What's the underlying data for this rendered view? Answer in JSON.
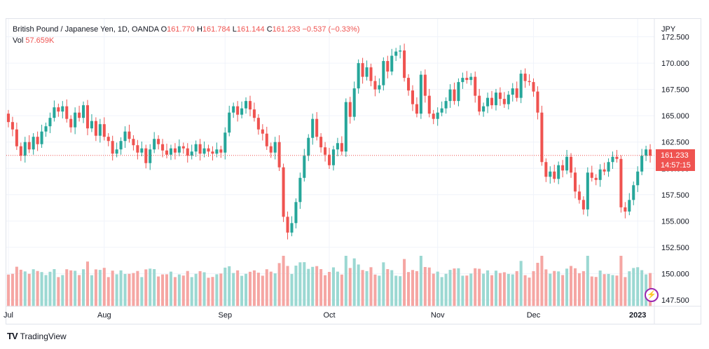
{
  "legend": {
    "symbol": "British Pound / Japanese Yen, 1D, OANDA",
    "o_label": "O",
    "o_value": "161.770",
    "h_label": "H",
    "h_value": "161.784",
    "l_label": "L",
    "l_value": "161.144",
    "c_label": "C",
    "c_value": "161.233",
    "change": "−0.537 (−0.33%)",
    "vol_label": "Vol",
    "vol_value": "57.659K"
  },
  "price_tag": {
    "price": "161.233",
    "countdown": "14:57:15"
  },
  "watermark": {
    "brand": "TradingView"
  },
  "colors": {
    "up": "#26a69a",
    "down": "#ef5350",
    "up_vol": "#9bd8d2",
    "down_vol": "#f5a6a3",
    "grid": "#f0f3fa",
    "text": "#131722"
  },
  "chart_data": {
    "type": "candlestick",
    "y_axis_currency": "JPY",
    "y_ticks": [
      "172.500",
      "170.000",
      "167.500",
      "165.000",
      "162.500",
      "160.000",
      "157.500",
      "155.000",
      "152.500",
      "150.000",
      "147.500"
    ],
    "y_tick_values": [
      172.5,
      170.0,
      167.5,
      165.0,
      162.5,
      160.0,
      157.5,
      155.0,
      152.5,
      150.0,
      147.5
    ],
    "ylim": [
      146.9,
      174.2
    ],
    "x_ticks": [
      "Jul",
      "Aug",
      "Sep",
      "Oct",
      "Nov",
      "Dec",
      "2023"
    ],
    "x_tick_index": [
      0,
      23,
      52,
      77,
      103,
      126,
      151
    ],
    "last_price": 161.233,
    "candles_close": [
      164.4,
      163.7,
      162.1,
      161.2,
      162.5,
      161.8,
      163.0,
      162.3,
      163.5,
      164.0,
      164.8,
      165.8,
      165.4,
      165.9,
      164.7,
      163.9,
      165.3,
      164.8,
      166.0,
      163.8,
      164.5,
      163.1,
      164.2,
      163.0,
      162.6,
      161.4,
      161.8,
      162.6,
      163.5,
      162.8,
      162.2,
      161.5,
      161.9,
      160.5,
      161.8,
      162.8,
      162.3,
      161.7,
      161.3,
      161.9,
      161.5,
      162.1,
      161.9,
      161.2,
      161.6,
      162.3,
      161.4,
      161.9,
      161.6,
      161.4,
      161.8,
      161.5,
      163.4,
      165.3,
      165.9,
      165.1,
      165.7,
      166.4,
      165.6,
      164.8,
      163.7,
      163.3,
      162.1,
      161.5,
      162.5,
      160.1,
      155.4,
      153.9,
      154.8,
      156.8,
      159.1,
      161.2,
      162.9,
      164.7,
      163.0,
      162.0,
      161.3,
      160.3,
      161.8,
      162.4,
      161.6,
      166.3,
      164.9,
      167.6,
      170.0,
      168.7,
      169.6,
      168.3,
      167.5,
      167.9,
      170.2,
      169.2,
      170.7,
      171.1,
      171.2,
      168.6,
      167.4,
      166.1,
      165.2,
      168.9,
      166.9,
      165.2,
      164.7,
      165.3,
      165.7,
      166.4,
      167.5,
      166.4,
      168.2,
      168.6,
      168.4,
      168.7,
      166.9,
      165.4,
      165.9,
      166.7,
      166.0,
      167.2,
      166.6,
      166.1,
      167.0,
      167.6,
      166.7,
      169.0,
      168.3,
      168.2,
      167.3,
      165.3,
      160.6,
      159.2,
      159.7,
      159.0,
      160.3,
      159.8,
      161.1,
      159.6,
      157.8,
      157.0,
      156.1,
      159.6,
      159.1,
      158.9,
      159.9,
      159.7,
      160.6,
      161.1,
      160.9,
      156.3,
      155.9,
      157.0,
      158.4,
      159.7,
      161.2,
      161.8,
      161.2
    ],
    "volume_shown": true
  }
}
